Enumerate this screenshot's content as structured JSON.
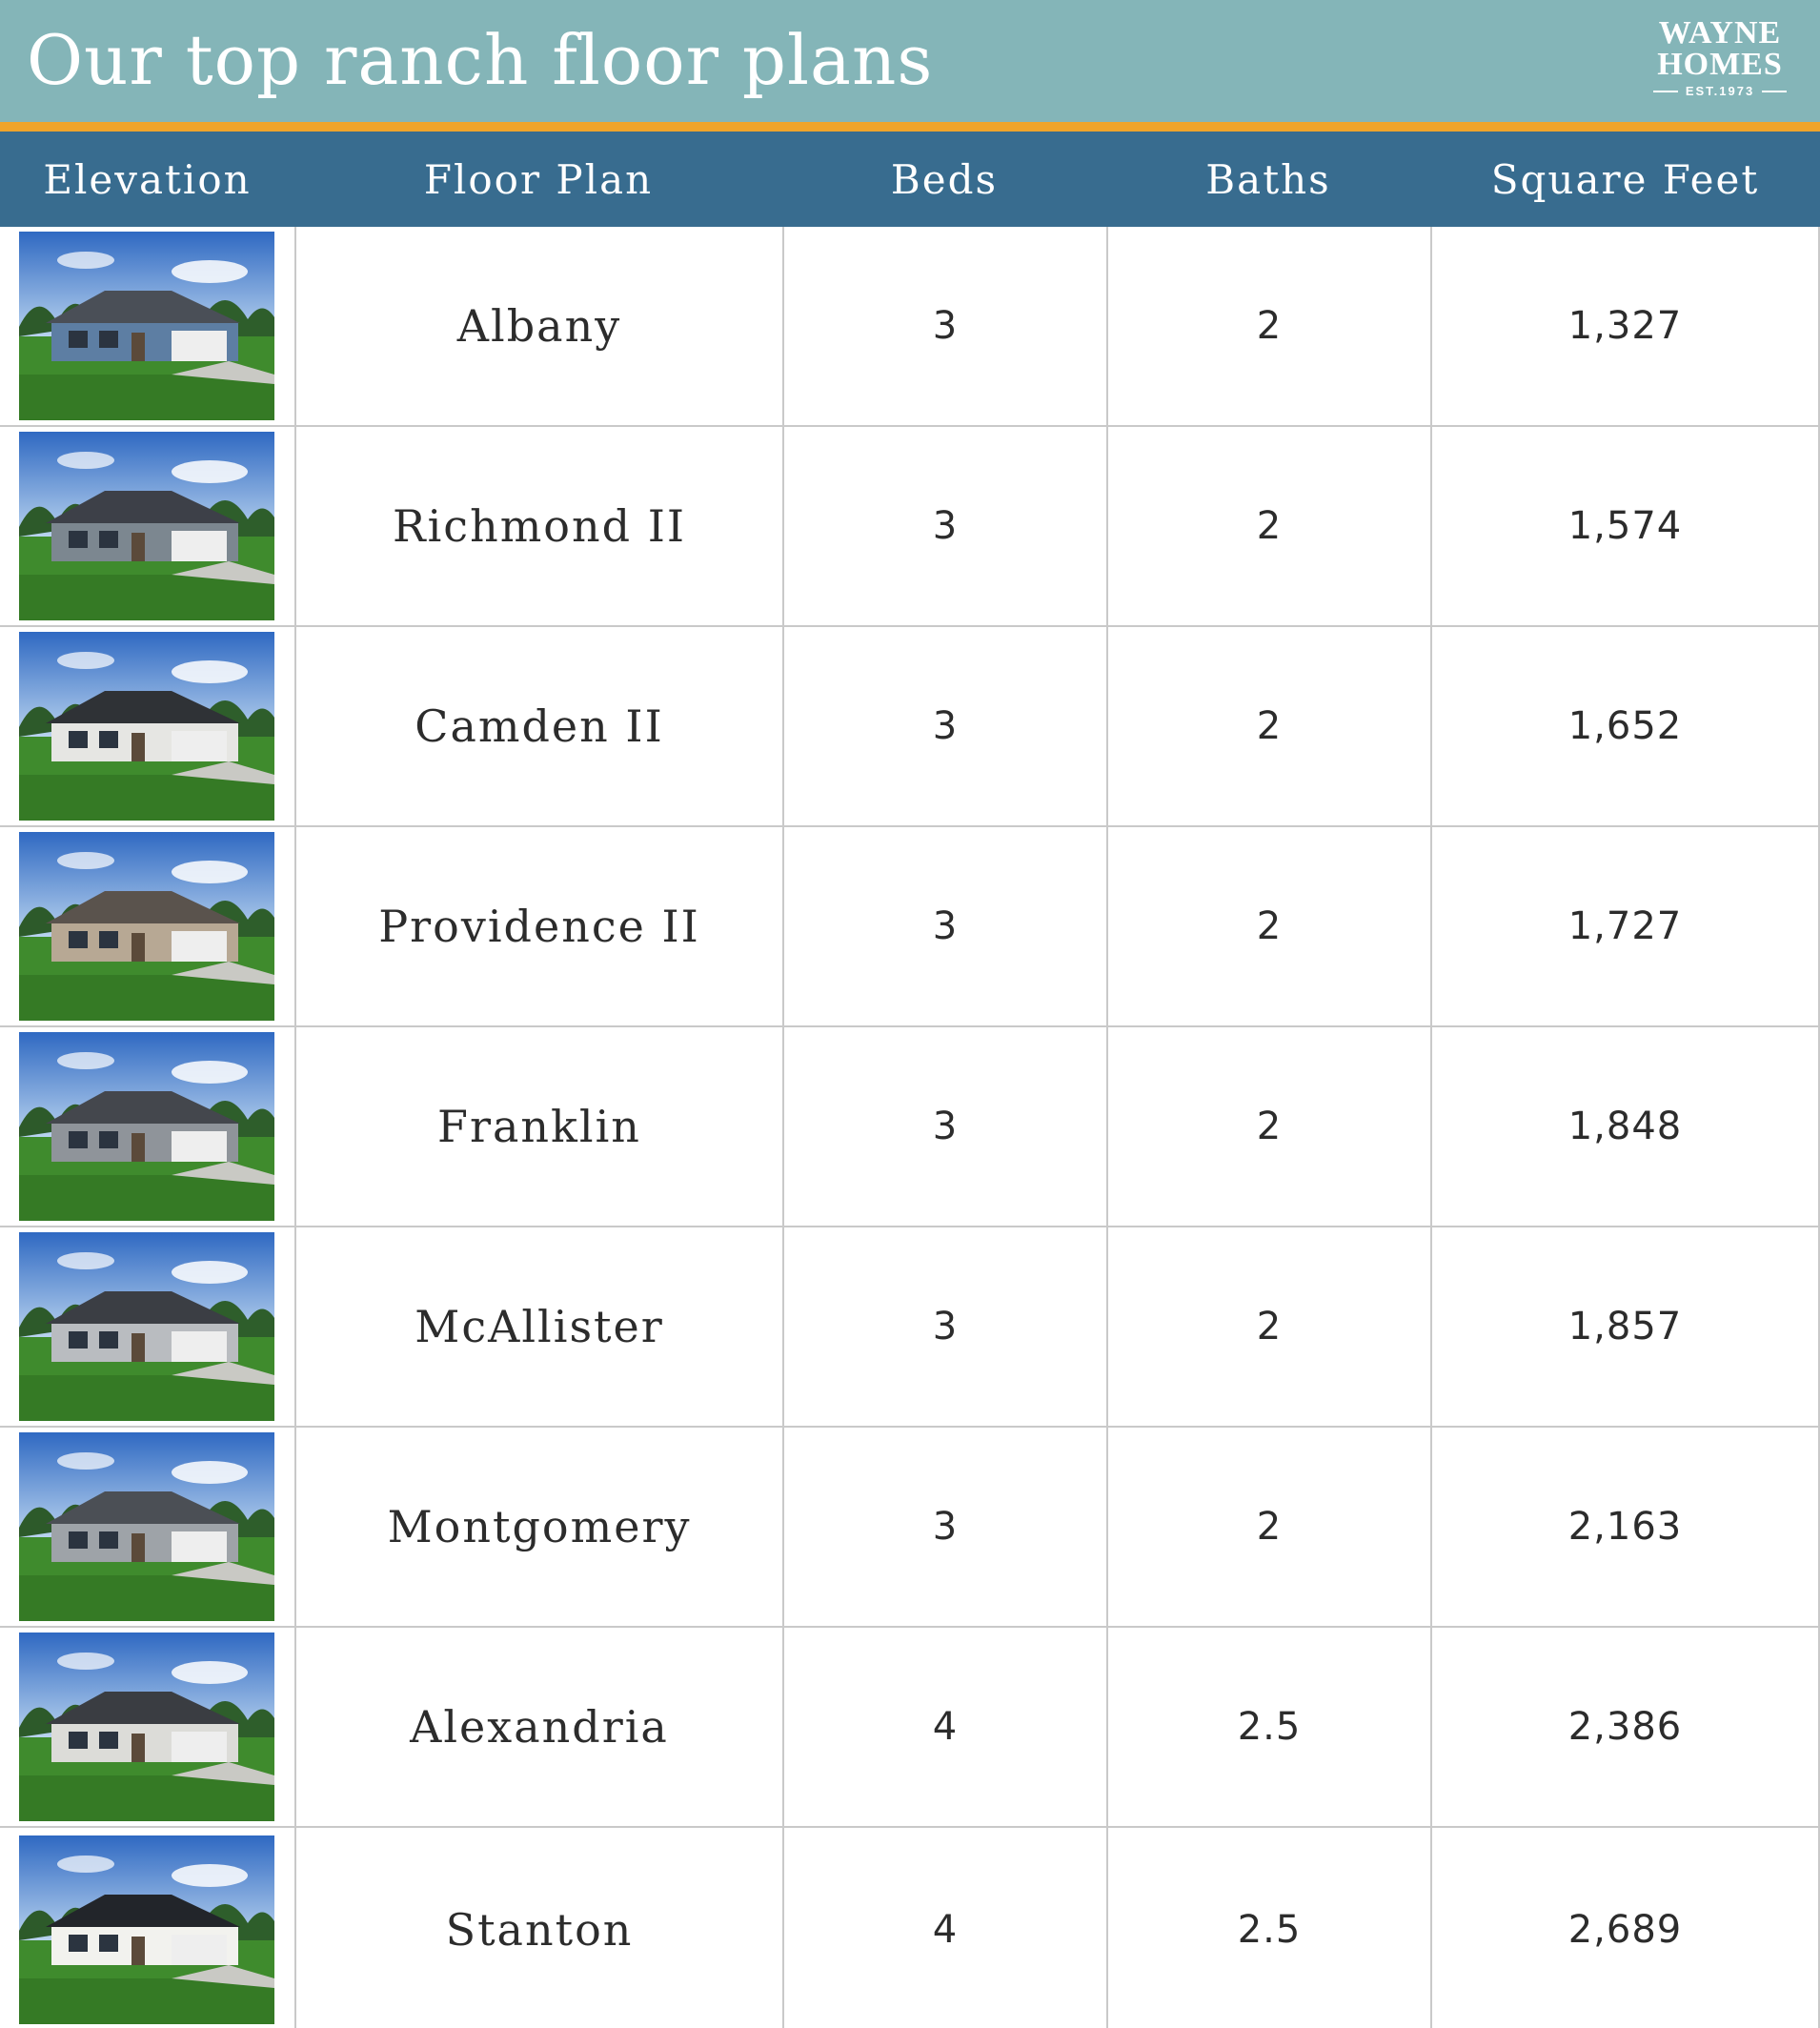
{
  "header": {
    "title": "Our top ranch floor plans",
    "logo": {
      "line1": "WAYNE",
      "line2": "HOMES",
      "est": "EST.1973"
    }
  },
  "colors": {
    "header_bg": "#84b5b8",
    "accent": "#efa42a",
    "table_header_bg": "#386c8f"
  },
  "table": {
    "columns": [
      "Elevation",
      "Floor Plan",
      "Beds",
      "Baths",
      "Square Feet"
    ],
    "rows": [
      {
        "elevation": "house-photo",
        "plan": "Albany",
        "beds": "3",
        "baths": "2",
        "sqft": "1,327"
      },
      {
        "elevation": "house-photo",
        "plan": "Richmond II",
        "beds": "3",
        "baths": "2",
        "sqft": "1,574"
      },
      {
        "elevation": "house-photo",
        "plan": "Camden II",
        "beds": "3",
        "baths": "2",
        "sqft": "1,652"
      },
      {
        "elevation": "house-photo",
        "plan": "Providence II",
        "beds": "3",
        "baths": "2",
        "sqft": "1,727"
      },
      {
        "elevation": "house-photo",
        "plan": "Franklin",
        "beds": "3",
        "baths": "2",
        "sqft": "1,848"
      },
      {
        "elevation": "house-photo",
        "plan": "McAllister",
        "beds": "3",
        "baths": "2",
        "sqft": "1,857"
      },
      {
        "elevation": "house-photo",
        "plan": "Montgomery",
        "beds": "3",
        "baths": "2",
        "sqft": "2,163"
      },
      {
        "elevation": "house-photo",
        "plan": "Alexandria",
        "beds": "4",
        "baths": "2.5",
        "sqft": "2,386"
      },
      {
        "elevation": "house-photo",
        "plan": "Stanton",
        "beds": "4",
        "baths": "2.5",
        "sqft": "2,689"
      }
    ]
  }
}
